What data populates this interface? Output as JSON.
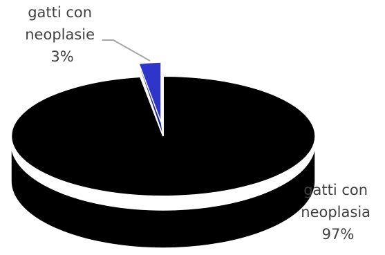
{
  "chart_data": {
    "type": "pie",
    "style": "3d-exploded",
    "slices": [
      {
        "label_lines": [
          "gatti con",
          "neoplasia"
        ],
        "percent_label": "97%",
        "value": 97,
        "color": "#000000",
        "side_color": "#000000"
      },
      {
        "label_lines": [
          "gatti con",
          "neoplasie"
        ],
        "percent_label": "3%",
        "value": 3,
        "color": "#2e35c8",
        "side_color": "#1c2296"
      }
    ],
    "legend": "none",
    "colors": {
      "edge": "#ffffff",
      "leader_line": "#a6a6a6",
      "label_text": "#404040"
    }
  }
}
